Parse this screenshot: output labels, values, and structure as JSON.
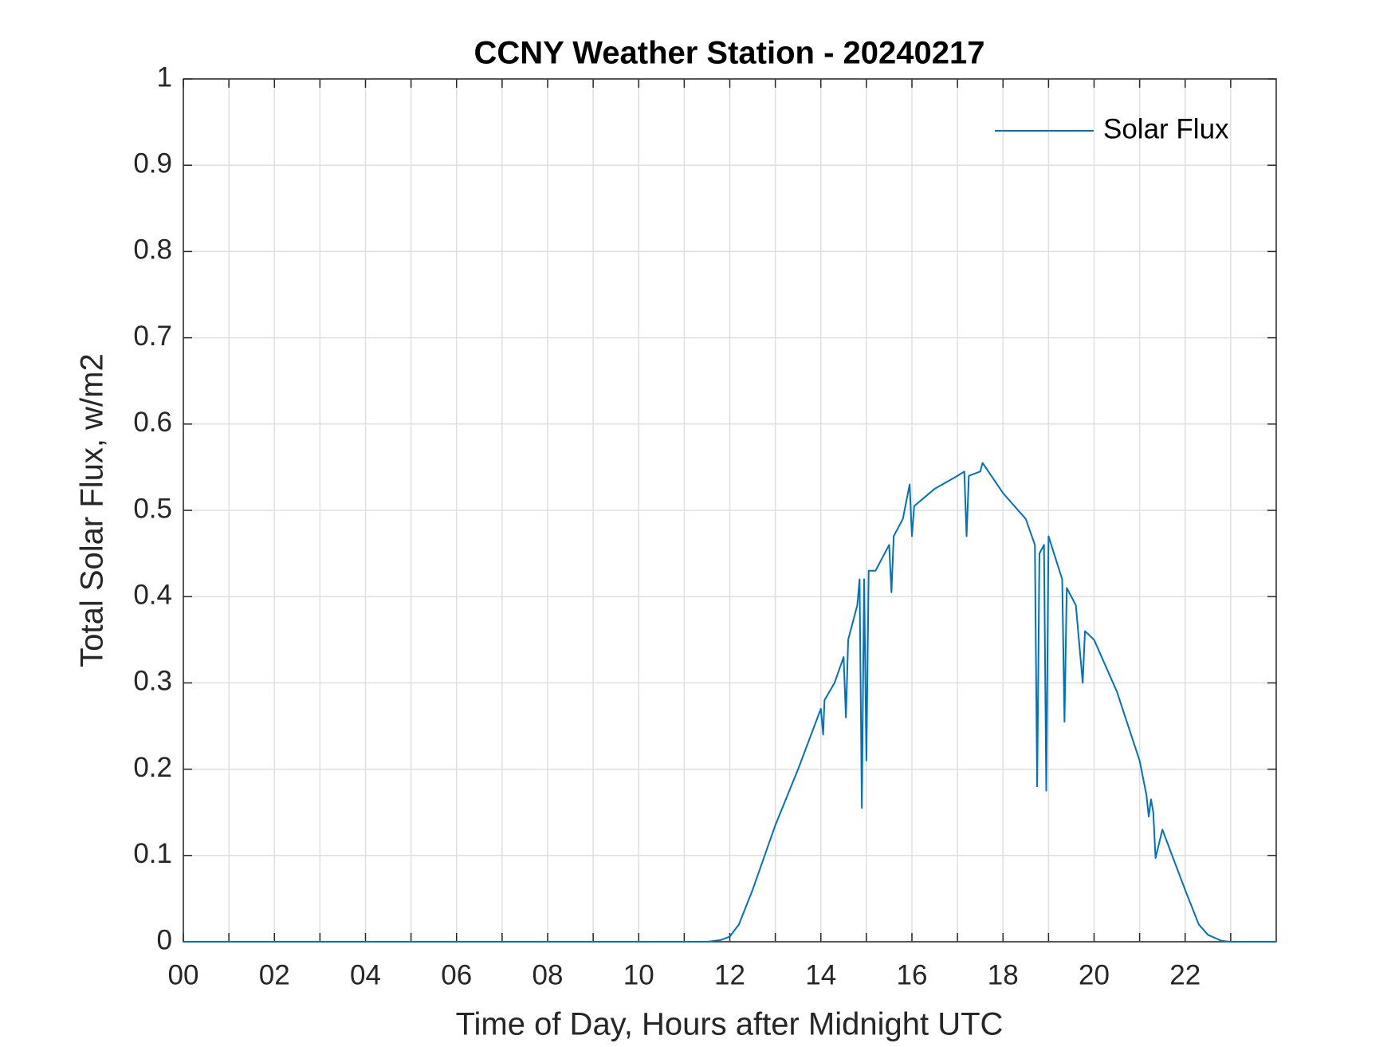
{
  "chart_data": {
    "type": "line",
    "title": "CCNY Weather Station - 20240217",
    "xlabel": "Time of Day, Hours after Midnight UTC",
    "ylabel": "Total Solar Flux, w/m2",
    "xlim": [
      0,
      24
    ],
    "ylim": [
      0,
      1
    ],
    "xticks": [
      {
        "value": 0,
        "label": "00"
      },
      {
        "value": 2,
        "label": "02"
      },
      {
        "value": 4,
        "label": "04"
      },
      {
        "value": 6,
        "label": "06"
      },
      {
        "value": 8,
        "label": "08"
      },
      {
        "value": 10,
        "label": "10"
      },
      {
        "value": 12,
        "label": "12"
      },
      {
        "value": 14,
        "label": "14"
      },
      {
        "value": 16,
        "label": "16"
      },
      {
        "value": 18,
        "label": "18"
      },
      {
        "value": 20,
        "label": "20"
      },
      {
        "value": 22,
        "label": "22"
      }
    ],
    "xminorticks": [
      1,
      3,
      5,
      7,
      9,
      11,
      13,
      15,
      17,
      19,
      21,
      23
    ],
    "yticks": [
      0,
      0.1,
      0.2,
      0.3,
      0.4,
      0.5,
      0.6,
      0.7,
      0.8,
      0.9,
      1
    ],
    "grid": true,
    "legend": "upper right",
    "x": [
      0,
      11.5,
      11.8,
      12.0,
      12.2,
      12.5,
      13.0,
      13.5,
      14.0,
      14.05,
      14.08,
      14.3,
      14.5,
      14.55,
      14.6,
      14.7,
      14.8,
      14.85,
      14.9,
      14.95,
      15.0,
      15.05,
      15.2,
      15.5,
      15.55,
      15.6,
      15.8,
      15.95,
      16.0,
      16.05,
      16.5,
      17.0,
      17.15,
      17.2,
      17.25,
      17.5,
      17.55,
      18.0,
      18.5,
      18.7,
      18.75,
      18.8,
      18.9,
      18.95,
      19.0,
      19.3,
      19.35,
      19.4,
      19.6,
      19.75,
      19.8,
      20.0,
      20.5,
      21.0,
      21.15,
      21.2,
      21.25,
      21.3,
      21.35,
      21.5,
      22.0,
      22.3,
      22.5,
      22.8,
      23.0,
      24
    ],
    "series": [
      {
        "name": "Solar Flux",
        "color": "#0072bd",
        "values": [
          0,
          0,
          0.002,
          0.006,
          0.02,
          0.06,
          0.135,
          0.2,
          0.27,
          0.24,
          0.28,
          0.3,
          0.33,
          0.26,
          0.35,
          0.37,
          0.39,
          0.42,
          0.155,
          0.42,
          0.21,
          0.43,
          0.43,
          0.46,
          0.405,
          0.47,
          0.49,
          0.53,
          0.47,
          0.505,
          0.525,
          0.54,
          0.545,
          0.47,
          0.54,
          0.545,
          0.555,
          0.52,
          0.49,
          0.46,
          0.18,
          0.45,
          0.46,
          0.175,
          0.47,
          0.42,
          0.255,
          0.41,
          0.39,
          0.3,
          0.36,
          0.35,
          0.29,
          0.21,
          0.17,
          0.145,
          0.165,
          0.15,
          0.097,
          0.13,
          0.06,
          0.02,
          0.008,
          0.001,
          0,
          0
        ]
      }
    ]
  }
}
